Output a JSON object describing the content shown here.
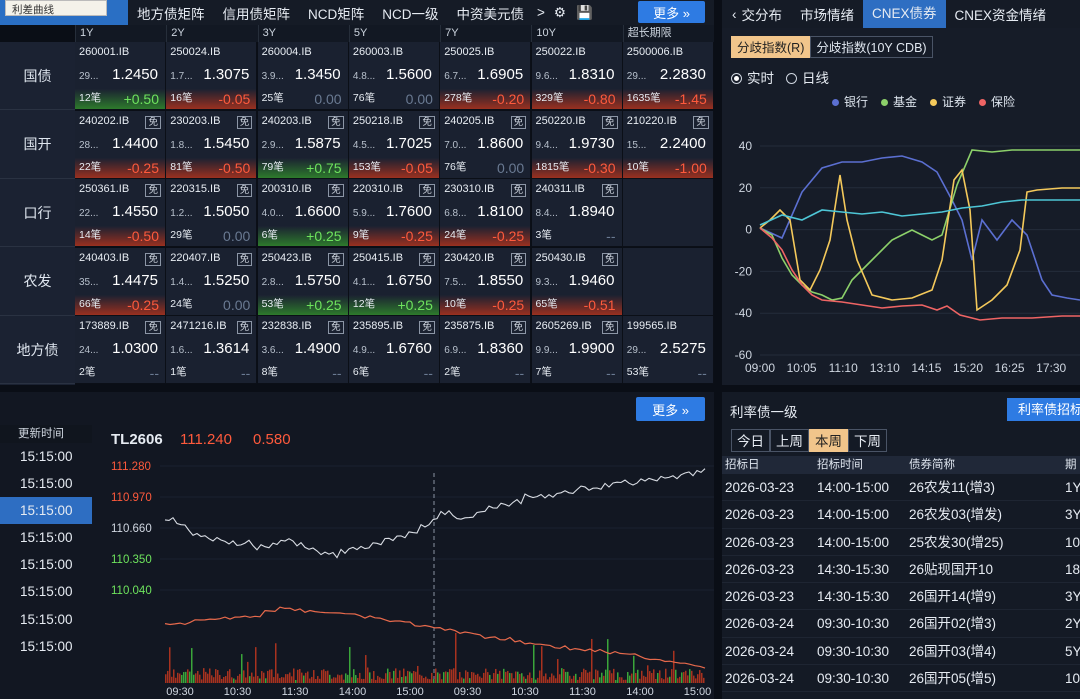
{
  "top_tabs": [
    "地方债矩阵",
    "信用债矩阵",
    "NCD矩阵",
    "NCD一级",
    "中资美元债"
  ],
  "tooltip": "利差曲线",
  "more_label": "更多 »",
  "matrix": {
    "terms": [
      "1Y",
      "2Y",
      "3Y",
      "5Y",
      "7Y",
      "10Y",
      "超长期限"
    ],
    "rows": [
      {
        "label": "国债",
        "cells": [
          {
            "code": "260001.IB",
            "vol": "29...",
            "yield": "1.2450",
            "count": "12笔",
            "chg": "+0.50",
            "dir": "up"
          },
          {
            "code": "250024.IB",
            "vol": "1.7...",
            "yield": "1.3075",
            "count": "16笔",
            "chg": "-0.05",
            "dir": "dn"
          },
          {
            "code": "260004.IB",
            "vol": "3.9...",
            "yield": "1.3450",
            "count": "25笔",
            "chg": "0.00",
            "dir": "fl"
          },
          {
            "code": "260003.IB",
            "vol": "4.8...",
            "yield": "1.5600",
            "count": "76笔",
            "chg": "0.00",
            "dir": "fl"
          },
          {
            "code": "250025.IB",
            "vol": "6.7...",
            "yield": "1.6905",
            "count": "278笔",
            "chg": "-0.20",
            "dir": "dn"
          },
          {
            "code": "250022.IB",
            "vol": "9.6...",
            "yield": "1.8310",
            "count": "329笔",
            "chg": "-0.80",
            "dir": "dn"
          },
          {
            "code": "2500006.IB",
            "vol": "29...",
            "yield": "2.2830",
            "count": "1635笔",
            "chg": "-1.45",
            "dir": "dn"
          }
        ]
      },
      {
        "label": "国开",
        "cells": [
          {
            "code": "240202.IB",
            "mark": "免",
            "vol": "28...",
            "yield": "1.4400",
            "count": "22笔",
            "chg": "-0.25",
            "dir": "dn"
          },
          {
            "code": "230203.IB",
            "mark": "免",
            "vol": "1.8...",
            "yield": "1.5450",
            "count": "81笔",
            "chg": "-0.50",
            "dir": "dn"
          },
          {
            "code": "240203.IB",
            "mark": "免",
            "vol": "2.9...",
            "yield": "1.5875",
            "count": "79笔",
            "chg": "+0.75",
            "dir": "up"
          },
          {
            "code": "250218.IB",
            "mark": "免",
            "vol": "4.5...",
            "yield": "1.7025",
            "count": "153笔",
            "chg": "-0.05",
            "dir": "dn"
          },
          {
            "code": "240205.IB",
            "mark": "免",
            "vol": "7.0...",
            "yield": "1.8600",
            "count": "76笔",
            "chg": "0.00",
            "dir": "fl"
          },
          {
            "code": "250220.IB",
            "mark": "免",
            "vol": "9.4...",
            "yield": "1.9730",
            "count": "1815笔",
            "chg": "-0.30",
            "dir": "dn"
          },
          {
            "code": "210220.IB",
            "mark": "免",
            "vol": "15...",
            "yield": "2.2400",
            "count": "10笔",
            "chg": "-1.00",
            "dir": "dn"
          }
        ]
      },
      {
        "label": "口行",
        "cells": [
          {
            "code": "250361.IB",
            "mark": "免",
            "vol": "22...",
            "yield": "1.4550",
            "count": "14笔",
            "chg": "-0.50",
            "dir": "dn"
          },
          {
            "code": "220315.IB",
            "mark": "免",
            "vol": "1.2...",
            "yield": "1.5050",
            "count": "29笔",
            "chg": "0.00",
            "dir": "fl"
          },
          {
            "code": "200310.IB",
            "mark": "免",
            "vol": "4.0...",
            "yield": "1.6600",
            "count": "6笔",
            "chg": "+0.25",
            "dir": "up"
          },
          {
            "code": "220310.IB",
            "mark": "免",
            "vol": "5.9...",
            "yield": "1.7600",
            "count": "9笔",
            "chg": "-0.25",
            "dir": "dn"
          },
          {
            "code": "230310.IB",
            "mark": "免",
            "vol": "6.8...",
            "yield": "1.8100",
            "count": "24笔",
            "chg": "-0.25",
            "dir": "dn"
          },
          {
            "code": "240311.IB",
            "mark": "免",
            "vol": "8.4...",
            "yield": "1.8940",
            "count": "3笔",
            "chg": "--",
            "dir": "fl"
          },
          null
        ]
      },
      {
        "label": "农发",
        "cells": [
          {
            "code": "240403.IB",
            "mark": "免",
            "vol": "35...",
            "yield": "1.4475",
            "count": "66笔",
            "chg": "-0.25",
            "dir": "dn"
          },
          {
            "code": "220407.IB",
            "mark": "免",
            "vol": "1.4...",
            "yield": "1.5250",
            "count": "24笔",
            "chg": "0.00",
            "dir": "fl"
          },
          {
            "code": "250423.IB",
            "mark": "免",
            "vol": "2.8...",
            "yield": "1.5750",
            "count": "53笔",
            "chg": "+0.25",
            "dir": "up"
          },
          {
            "code": "250415.IB",
            "mark": "免",
            "vol": "4.1...",
            "yield": "1.6750",
            "count": "12笔",
            "chg": "+0.25",
            "dir": "up"
          },
          {
            "code": "230420.IB",
            "mark": "免",
            "vol": "7.5...",
            "yield": "1.8550",
            "count": "10笔",
            "chg": "-0.25",
            "dir": "dn"
          },
          {
            "code": "250430.IB",
            "mark": "免",
            "vol": "9.3...",
            "yield": "1.9460",
            "count": "65笔",
            "chg": "-0.51",
            "dir": "dn"
          },
          null
        ]
      },
      {
        "label": "地方债",
        "cells": [
          {
            "code": "173889.IB",
            "mark": "免",
            "vol": "24...",
            "yield": "1.0300",
            "count": "2笔",
            "chg": "--",
            "dir": "fl"
          },
          {
            "code": "2471216.IB",
            "mark": "免",
            "vol": "1.6...",
            "yield": "1.3614",
            "count": "1笔",
            "chg": "--",
            "dir": "fl"
          },
          {
            "code": "232838.IB",
            "mark": "免",
            "vol": "3.6...",
            "yield": "1.4900",
            "count": "8笔",
            "chg": "--",
            "dir": "fl"
          },
          {
            "code": "235895.IB",
            "mark": "免",
            "vol": "4.9...",
            "yield": "1.6760",
            "count": "6笔",
            "chg": "--",
            "dir": "fl"
          },
          {
            "code": "235875.IB",
            "mark": "免",
            "vol": "6.9...",
            "yield": "1.8360",
            "count": "2笔",
            "chg": "--",
            "dir": "fl"
          },
          {
            "code": "2605269.IB",
            "mark": "免",
            "vol": "9.9...",
            "yield": "1.9900",
            "count": "7笔",
            "chg": "--",
            "dir": "fl"
          },
          {
            "code": "199565.IB",
            "vol": "29...",
            "yield": "2.5275",
            "count": "53笔",
            "chg": "--",
            "dir": "fl"
          }
        ]
      }
    ]
  },
  "right_tabs": [
    "交分布",
    "市场情绪",
    "CNEX债券",
    "CNEX资金情绪"
  ],
  "index_buttons": [
    "分歧指数(R)",
    "分歧指数(10Y CDB)"
  ],
  "radio": {
    "live": "实时",
    "daily": "日线"
  },
  "legend": [
    {
      "name": "银行",
      "color": "#5b6fd1"
    },
    {
      "name": "基金",
      "color": "#8cd06a"
    },
    {
      "name": "证券",
      "color": "#f4c95b"
    },
    {
      "name": "保险",
      "color": "#ef6464"
    }
  ],
  "sentiment_chart": {
    "yticks": [
      "40",
      "20",
      "0",
      "-20",
      "-40",
      "-60"
    ],
    "xticks": [
      "09:00",
      "10:05",
      "11:10",
      "13:10",
      "14:15",
      "15:20",
      "16:25",
      "17:30"
    ]
  },
  "time_list": {
    "header": "更新时间",
    "times": [
      "15:15:00",
      "15:15:00",
      "15:15:00",
      "15:15:00",
      "15:15:00",
      "15:15:00",
      "15:15:00",
      "15:15:00"
    ]
  },
  "futures": {
    "symbol": "TL2606",
    "price": "111.240",
    "change": "0.580",
    "yticks": [
      "111.280",
      "110.970",
      "110.660",
      "110.350",
      "110.040"
    ],
    "xticks": [
      "09:30",
      "10:30",
      "11:30",
      "14:00",
      "15:00",
      "09:30",
      "10:30",
      "11:30",
      "14:00",
      "15:00"
    ]
  },
  "rate_bonds": {
    "title": "利率债一级",
    "button": "利率债招标",
    "weeks": [
      "今日",
      "上周",
      "本周",
      "下周"
    ],
    "headers": [
      "招标日",
      "招标时间",
      "债券简称",
      "期"
    ],
    "rows": [
      [
        "2026-03-23",
        "14:00-15:00",
        "26农发11(增3)",
        "1Y"
      ],
      [
        "2026-03-23",
        "14:00-15:00",
        "26农发03(增发)",
        "3Y"
      ],
      [
        "2026-03-23",
        "14:00-15:00",
        "25农发30(增25)",
        "10"
      ],
      [
        "2026-03-23",
        "14:30-15:30",
        "26贴现国开10",
        "18"
      ],
      [
        "2026-03-23",
        "14:30-15:30",
        "26国开14(增9)",
        "3Y"
      ],
      [
        "2026-03-24",
        "09:30-10:30",
        "26国开02(增3)",
        "2Y"
      ],
      [
        "2026-03-24",
        "09:30-10:30",
        "26国开03(增4)",
        "5Y"
      ],
      [
        "2026-03-24",
        "09:30-10:30",
        "26国开05(增5)",
        "10"
      ]
    ]
  }
}
